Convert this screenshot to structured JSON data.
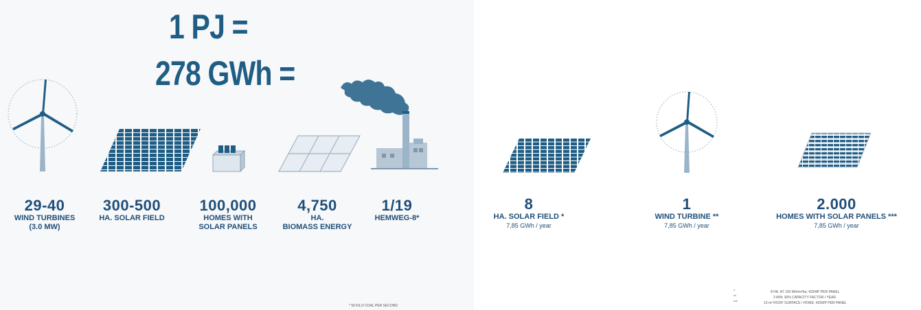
{
  "colors": {
    "primary": "#1f5d85",
    "light": "#9cb4c8",
    "panel_left": "#f7f8f9"
  },
  "headline": {
    "line1": "1 PJ =",
    "line2": "278 GWh ="
  },
  "left_stats": [
    {
      "value": "29-40",
      "label_1": "WIND TURBINES",
      "label_2": "(3.0 MW)",
      "icon": "wind-turbine-icon"
    },
    {
      "value": "300-500",
      "label_1": "HA. SOLAR FIELD",
      "label_2": "",
      "icon": "solar-field-icon"
    },
    {
      "value": "100,000",
      "label_1": "HOMES WITH",
      "label_2": "SOLAR PANELS",
      "icon": "solar-home-icon"
    },
    {
      "value": "4,750",
      "label_1": "HA.",
      "label_2": "BIOMASS ENERGY",
      "icon": "biomass-field-icon"
    },
    {
      "value": "1/19",
      "label_1": "HEMWEG-8*",
      "label_2": "",
      "icon": "power-plant-icon"
    }
  ],
  "right_stats": [
    {
      "value": "8",
      "label": "HA. SOLAR FIELD *",
      "sub": "7,85 GWh / year",
      "icon": "solar-field-icon"
    },
    {
      "value": "1",
      "label": "WIND TURBINE **",
      "sub": "7,85 GWh / year",
      "icon": "wind-turbine-icon"
    },
    {
      "value": "2.000",
      "label": "HOMES WITH SOLAR PANELS ***",
      "sub": "7,85 GWh / year",
      "icon": "solar-roofs-icon"
    }
  ],
  "footnotes": {
    "left": "* 50 KILO COAL PER SECOND",
    "right_1": "8 HA. AT 100 Wh/m²/ha; 425WP PER PANEL",
    "right_2": "3 MW; 30% CAPACITY FACTOR / YEAR",
    "right_3": "10 m² ROOF SURFACE / HOME; 425WP PER PANEL",
    "markers": [
      "*",
      "**",
      "***"
    ]
  }
}
